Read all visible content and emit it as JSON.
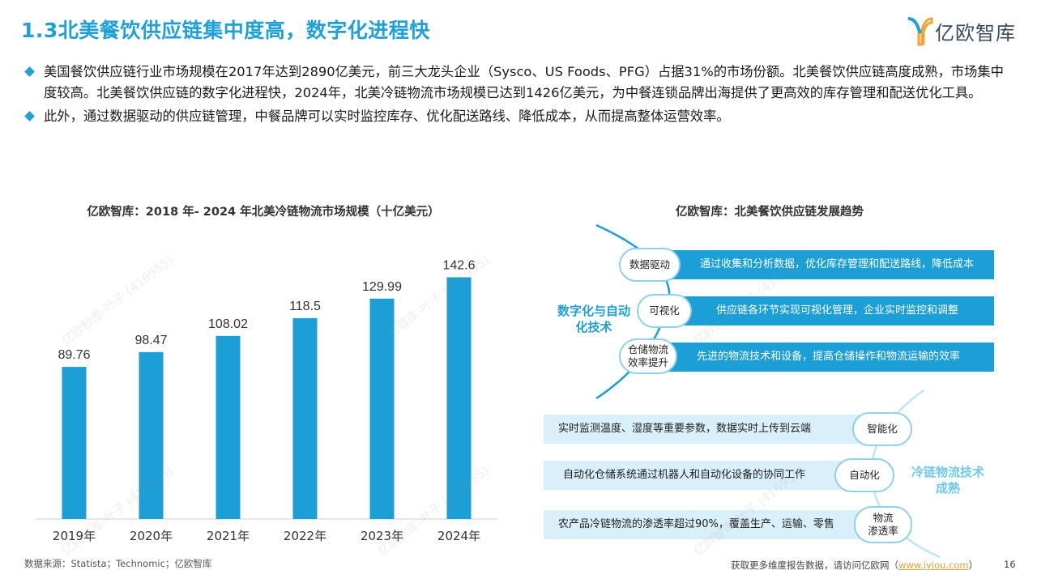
{
  "header": {
    "title": "1.3北美餐饮供应链集中度高，数字化进程快",
    "logo_text": "亿欧智库"
  },
  "bullets": [
    "美国餐饮供应链行业市场规模在2017年达到2890亿美元，前三大龙头企业（Sysco、US Foods、PFG）占据31%的市场份额。北美餐饮供应链高度成熟，市场集中度较高。北美餐饮供应链的数字化进程快，2024年，北美冷链物流市场规模已达到1426亿美元，为中餐连锁品牌出海提供了更高效的库存管理和配送优化工具。",
    "此外，通过数据驱动的供应链管理，中餐品牌可以实时监控库存、优化配送路线、降低成本，从而提高整体运营效率。"
  ],
  "chart_data": {
    "type": "bar",
    "title": "亿欧智库：2018 年- 2024 年北美冷链物流市场规模（十亿美元）",
    "categories": [
      "2019年",
      "2020年",
      "2021年",
      "2022年",
      "2023年",
      "2024年"
    ],
    "values": [
      89.76,
      98.47,
      108.02,
      118.5,
      129.99,
      142.6
    ],
    "value_labels": [
      "89.76",
      "98.47",
      "108.02",
      "118.5",
      "129.99",
      "142.6"
    ],
    "ylim": [
      0,
      160
    ],
    "bar_color": "#1c9ed6",
    "grid": false
  },
  "diagram": {
    "title": "亿欧智库：北美餐饮供应链发展趋势",
    "group1": {
      "label_line1": "数字化与自动",
      "label_line2": "化技术",
      "items": [
        {
          "node": "数据驱动",
          "text": "通过收集和分析数据，优化库存管理和配送路线，降低成本"
        },
        {
          "node": "可视化",
          "text": "供应链各环节实现可视化管理，企业实时监控和调整"
        },
        {
          "node_line1": "仓储物流",
          "node_line2": "效率提升",
          "text": "先进的物流技术和设备，提高仓储操作和物流运输的效率"
        }
      ]
    },
    "group2": {
      "label_line1": "冷链物流技术",
      "label_line2": "成熟",
      "items": [
        {
          "node": "智能化",
          "text": "实时监测温度、湿度等重要参数，数据实时上传到云端"
        },
        {
          "node": "自动化",
          "text": "自动化仓储系统通过机器人和自动化设备的协同工作"
        },
        {
          "node_line1": "物流",
          "node_line2": "渗透率",
          "text": "农产品冷链物流的渗透率超过90%，覆盖生产、运输、零售"
        }
      ]
    }
  },
  "footer": {
    "source": "数据来源：Statista；Technomic；亿欧智库",
    "more_prefix": "获取更多维度报告数据，请访问亿欧网（",
    "more_link": "www.iyiou.com",
    "more_suffix": "）",
    "page": "16"
  },
  "watermark": "亿欧智库-叶子 (416955)",
  "colors": {
    "accent": "#1fa0d6",
    "bar": "#1c9ed6",
    "light_bar": "#d9eff9"
  }
}
